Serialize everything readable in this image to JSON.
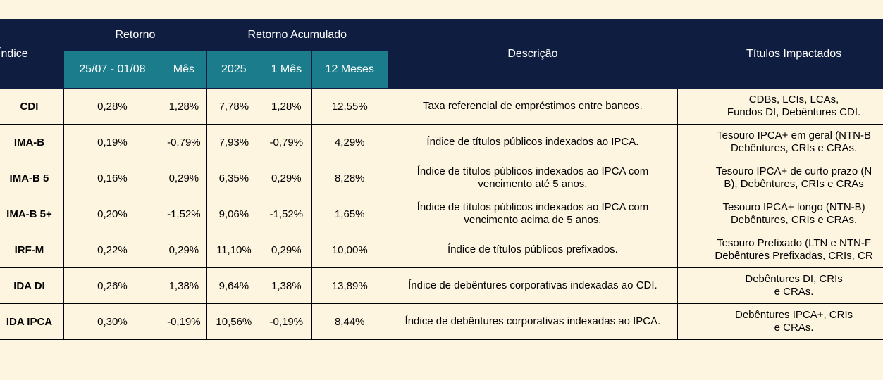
{
  "table": {
    "header": {
      "index": "Índice",
      "retorno": "Retorno",
      "acumulado": "Retorno Acumulado",
      "descricao": "Descrição",
      "titulos": "Títulos Impactados",
      "sub": [
        "25/07 - 01/08",
        "Mês",
        "2025",
        "1 Mês",
        "12 Meses"
      ]
    },
    "rows": [
      [
        "CDI",
        "0,28%",
        "1,28%",
        "7,78%",
        "1,28%",
        "12,55%",
        "Taxa referencial de empréstimos entre bancos.",
        "CDBs, LCIs, LCAs,",
        "Fundos DI, Debêntures CDI."
      ],
      [
        "IMA-B",
        "0,19%",
        "-0,79%",
        "7,93%",
        "-0,79%",
        "4,29%",
        "Índice de títulos públicos indexados ao IPCA.",
        "Tesouro IPCA+ em geral (NTN-B",
        "Debêntures, CRIs e CRAs."
      ],
      [
        "IMA-B 5",
        "0,16%",
        "0,29%",
        "6,35%",
        "0,29%",
        "8,28%",
        "Índice de títulos públicos indexados ao IPCA com vencimento até 5 anos.",
        "Tesouro IPCA+ de curto prazo (N",
        "B), Debêntures, CRIs e CRAs"
      ],
      [
        "IMA-B 5+",
        "0,20%",
        "-1,52%",
        "9,06%",
        "-1,52%",
        "1,65%",
        "Índice de títulos públicos indexados ao IPCA com vencimento acima de 5 anos.",
        "Tesouro IPCA+ longo (NTN-B)",
        "Debêntures, CRIs e CRAs."
      ],
      [
        "IRF-M",
        "0,22%",
        "0,29%",
        "11,10%",
        "0,29%",
        "10,00%",
        "Índice de títulos públicos prefixados.",
        "Tesouro Prefixado (LTN e NTN-F",
        "Debêntures Prefixadas, CRIs, CR"
      ],
      [
        "IDA DI",
        "0,26%",
        "1,38%",
        "9,64%",
        "1,38%",
        "13,89%",
        "Índice de debêntures corporativas indexadas ao CDI.",
        "Debêntures DI, CRIs",
        "e CRAs."
      ],
      [
        "IDA IPCA",
        "0,30%",
        "-0,19%",
        "10,56%",
        "-0,19%",
        "8,44%",
        "Índice de debêntures corporativas indexadas ao IPCA.",
        "Debêntures IPCA+, CRIs",
        "e CRAs."
      ]
    ]
  }
}
